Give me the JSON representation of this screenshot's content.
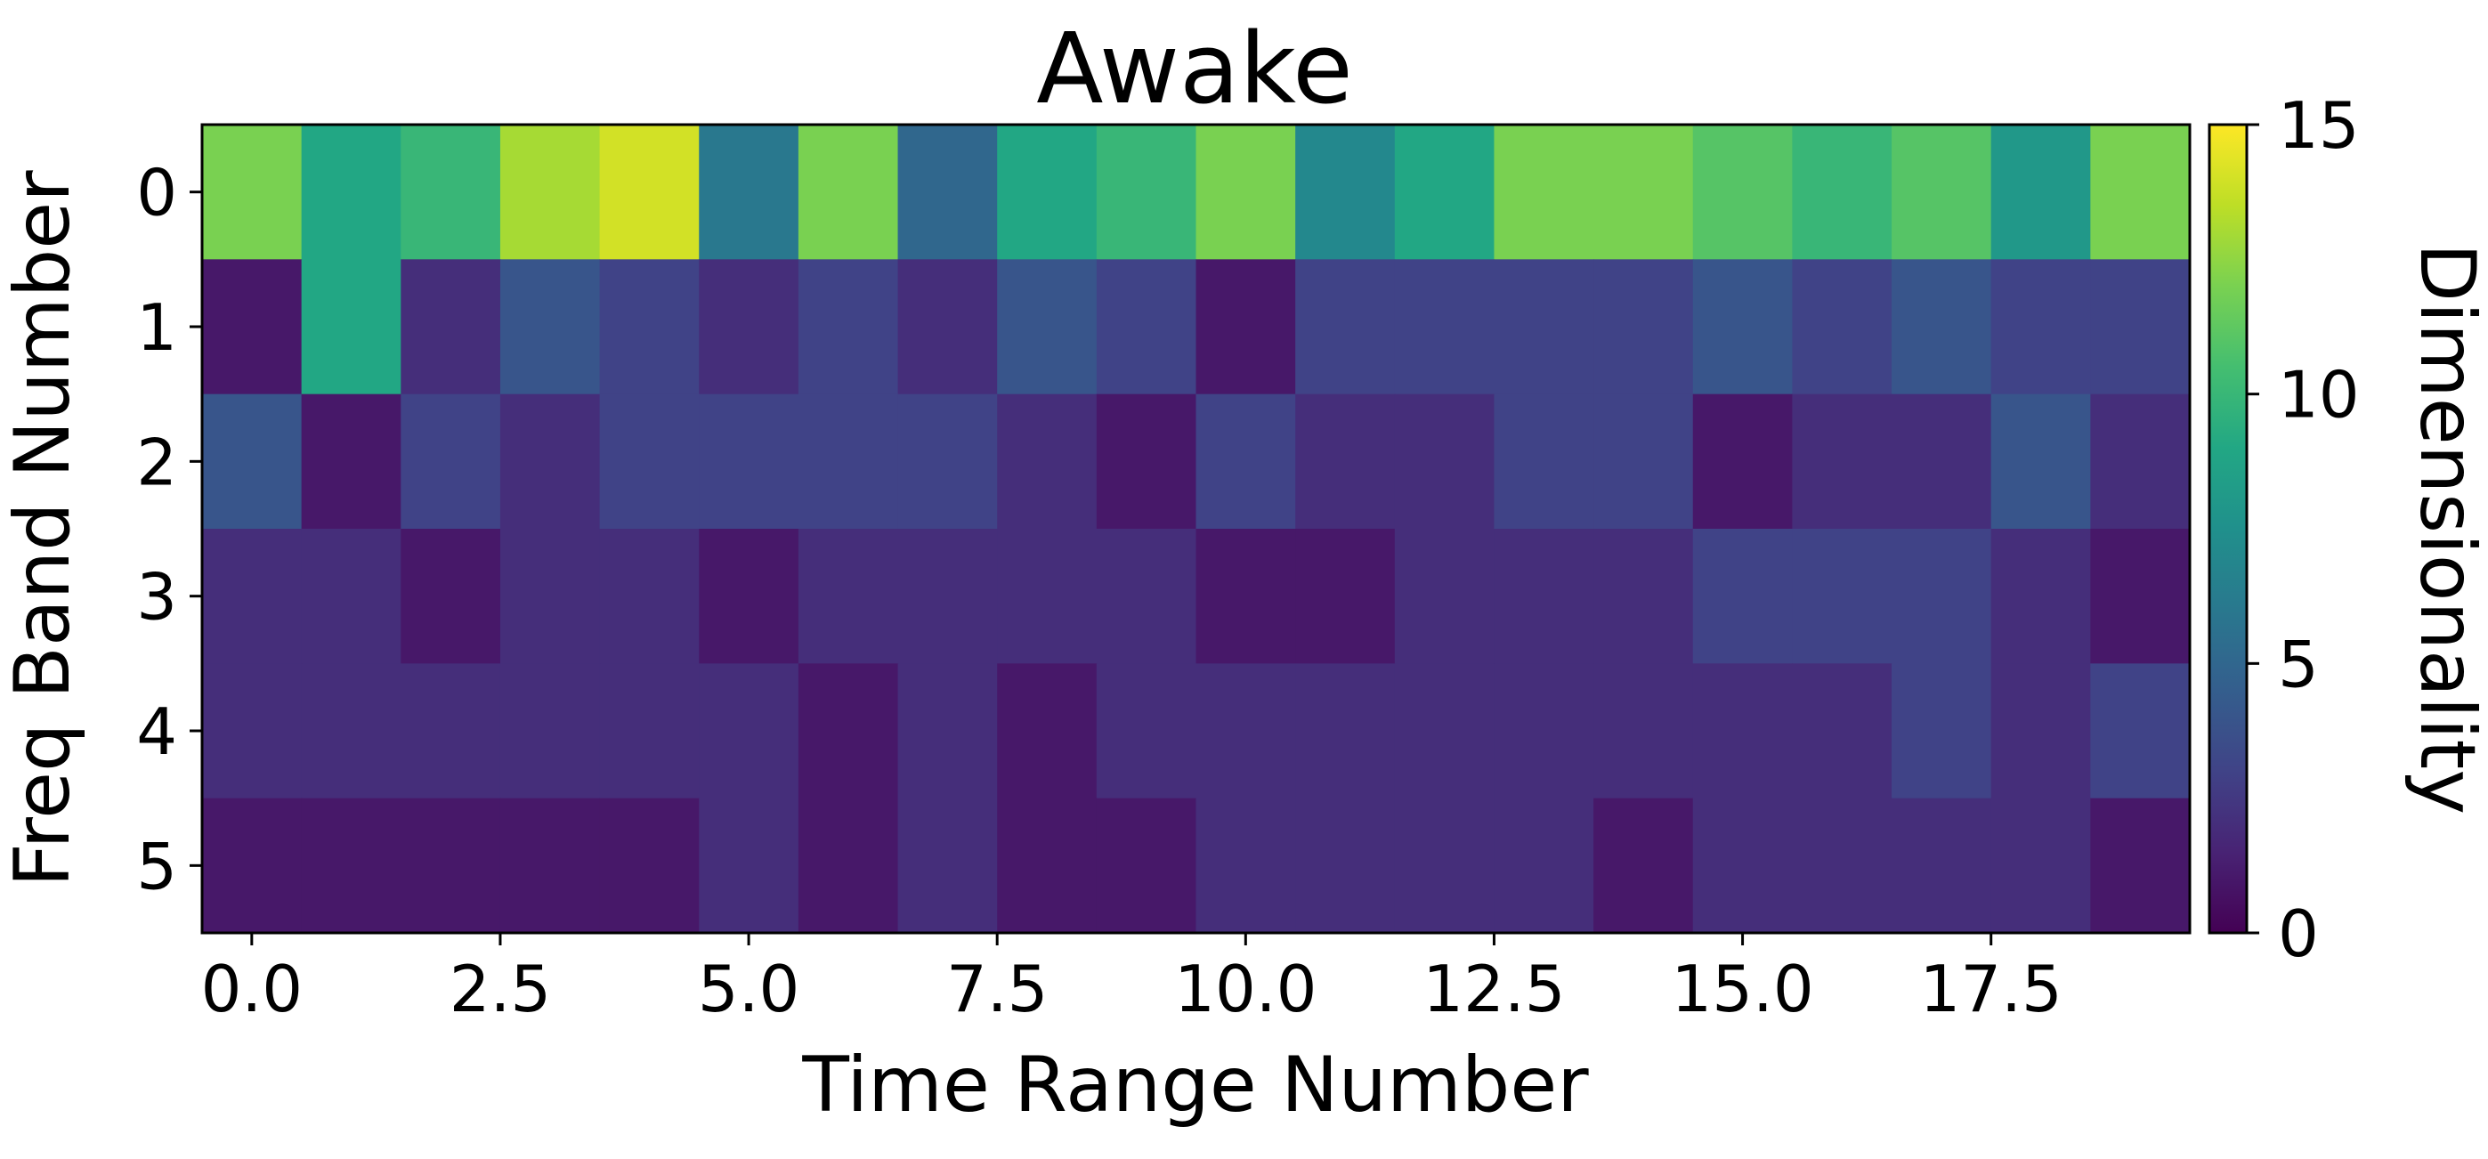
{
  "chart_data": {
    "type": "heatmap",
    "title": "Awake",
    "xlabel": "Time Range Number",
    "ylabel": "Freq Band Number",
    "colorbar_label": "Dimensionality",
    "colormap": "viridis",
    "xlim": [
      -0.5,
      19.5
    ],
    "x_ticks": [
      0.0,
      2.5,
      5.0,
      7.5,
      10.0,
      12.5,
      15.0,
      17.5
    ],
    "x_tick_labels": [
      "0.0",
      "2.5",
      "5.0",
      "7.5",
      "10.0",
      "12.5",
      "15.0",
      "17.5"
    ],
    "y_ticks": [
      0,
      1,
      2,
      3,
      4,
      5
    ],
    "y_tick_labels": [
      "0",
      "1",
      "2",
      "3",
      "4",
      "5"
    ],
    "color_range": [
      0,
      15
    ],
    "colorbar_ticks": [
      0,
      5,
      10,
      15
    ],
    "colorbar_tick_labels": [
      "0",
      "5",
      "10",
      "15"
    ],
    "grid": false,
    "rows": [
      [
        12,
        9,
        10,
        13,
        14,
        6,
        12,
        5,
        9,
        10,
        12,
        7,
        9,
        12,
        12,
        11,
        10,
        11,
        8,
        12
      ],
      [
        1,
        9,
        2,
        4,
        3,
        2,
        3,
        2,
        4,
        3,
        1,
        3,
        3,
        3,
        3,
        4,
        3,
        4,
        3,
        3
      ],
      [
        4,
        1,
        3,
        2,
        3,
        3,
        3,
        3,
        2,
        1,
        3,
        2,
        2,
        3,
        3,
        1,
        2,
        2,
        4,
        2
      ],
      [
        2,
        2,
        1,
        2,
        2,
        1,
        2,
        2,
        2,
        2,
        1,
        1,
        2,
        2,
        2,
        3,
        3,
        3,
        2,
        1
      ],
      [
        2,
        2,
        2,
        2,
        2,
        2,
        1,
        2,
        1,
        2,
        2,
        2,
        2,
        2,
        2,
        2,
        2,
        3,
        2,
        3
      ],
      [
        1,
        1,
        1,
        1,
        1,
        2,
        1,
        2,
        1,
        1,
        2,
        2,
        2,
        2,
        1,
        2,
        2,
        2,
        2,
        1
      ]
    ]
  }
}
